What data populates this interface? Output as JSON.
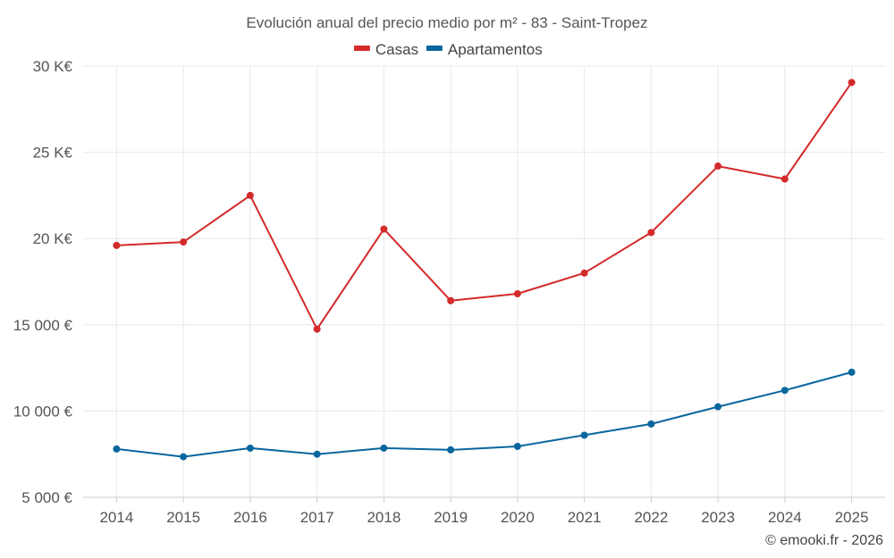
{
  "chart_data": {
    "type": "line",
    "title": "Evolución anual del precio medio por m² - 83 - Saint-Tropez",
    "categories": [
      "2014",
      "2015",
      "2016",
      "2017",
      "2018",
      "2019",
      "2020",
      "2021",
      "2022",
      "2023",
      "2024",
      "2025"
    ],
    "ylim": [
      5000,
      30000
    ],
    "y_ticks": [
      5000,
      10000,
      15000,
      20000,
      25000,
      30000
    ],
    "y_tick_labels": [
      "5 000 €",
      "10 000 €",
      "15 000 €",
      "20 K€",
      "25 K€",
      "30 K€"
    ],
    "grid": true,
    "legend_position": "top-center",
    "series": [
      {
        "name": "Casas",
        "color": "#d42a2a",
        "values": [
          19600,
          19800,
          22500,
          14750,
          20550,
          16400,
          16800,
          18000,
          20350,
          24200,
          23450,
          29050
        ]
      },
      {
        "name": "Apartamentos",
        "color": "#08669e",
        "values": [
          7800,
          7350,
          7850,
          7500,
          7850,
          7750,
          7950,
          8600,
          9250,
          10250,
          11200,
          12250
        ]
      }
    ],
    "credit": "© emooki.fr - 2026"
  }
}
